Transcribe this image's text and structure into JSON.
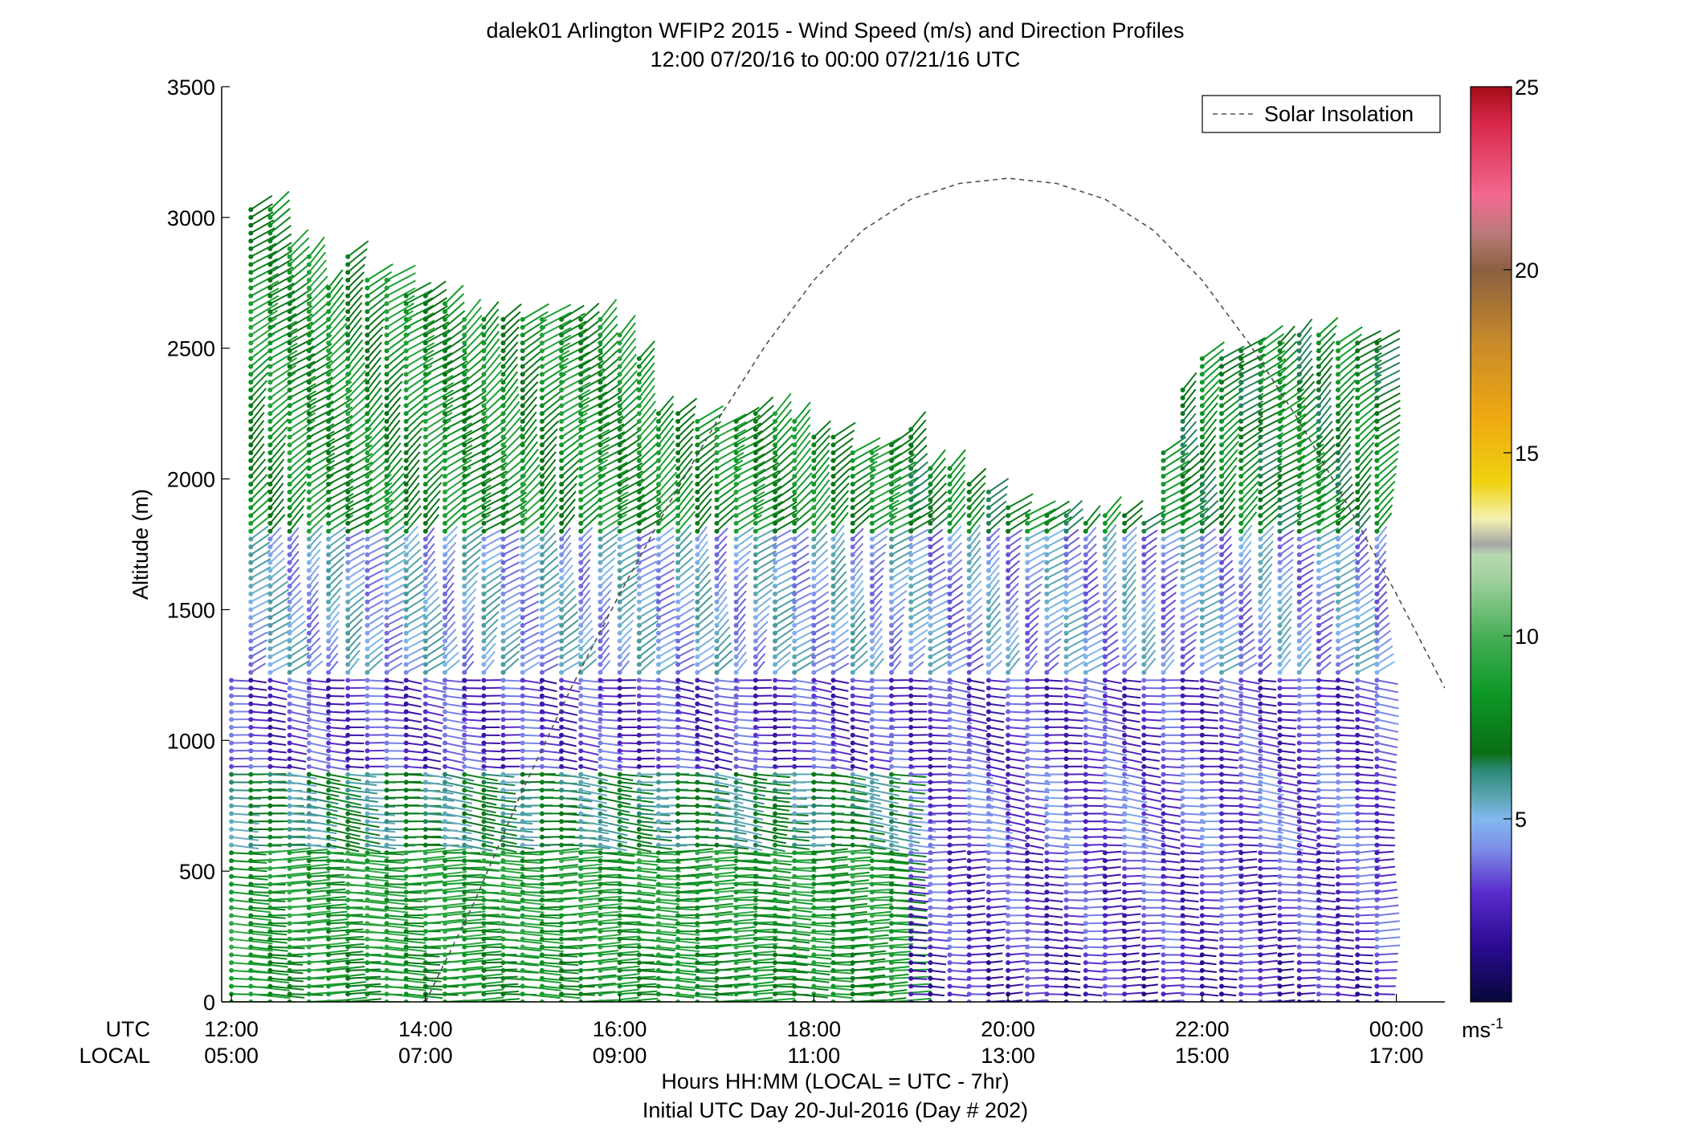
{
  "chart_data": {
    "type": "scatter",
    "subtype": "wind-barb-profile",
    "title": "dalek01 Arlington WFIP2 2015 - Wind Speed (m/s) and Direction Profiles",
    "subtitle": "12:00 07/20/16 to 00:00 07/21/16  UTC",
    "ylabel": "Altitude (m)",
    "xlabel": "Hours HH:MM  (LOCAL = UTC - 7hr)",
    "xlabel2": "Initial UTC Day 20-Jul-2016 (Day # 202)",
    "row_label_utc": "UTC",
    "row_label_local": "LOCAL",
    "x_ticks_utc": [
      "12:00",
      "14:00",
      "16:00",
      "18:00",
      "20:00",
      "22:00",
      "00:00"
    ],
    "x_ticks_local": [
      "05:00",
      "07:00",
      "09:00",
      "11:00",
      "13:00",
      "15:00",
      "17:00"
    ],
    "x_tick_hours": [
      12,
      14,
      16,
      18,
      20,
      22,
      24
    ],
    "xlim_hours": [
      11.9,
      24.5
    ],
    "ylim": [
      0,
      3500
    ],
    "y_ticks": [
      0,
      500,
      1000,
      1500,
      2000,
      2500,
      3000,
      3500
    ],
    "legend": {
      "entries": [
        "Solar Insolation"
      ],
      "placement": "top-right"
    },
    "colorbar": {
      "range": [
        0,
        25
      ],
      "ticks": [
        5,
        10,
        15,
        20,
        25
      ],
      "unit_label": "ms",
      "unit_exponent": "-1",
      "stops": [
        {
          "v": 0,
          "c": "#07083a"
        },
        {
          "v": 1.5,
          "c": "#2a0a90"
        },
        {
          "v": 3,
          "c": "#5a2ccc"
        },
        {
          "v": 4.2,
          "c": "#7d8fe8"
        },
        {
          "v": 5,
          "c": "#82b8ee"
        },
        {
          "v": 5.6,
          "c": "#5aa6b2"
        },
        {
          "v": 6.3,
          "c": "#2e8a7c"
        },
        {
          "v": 6.8,
          "c": "#0a6e14"
        },
        {
          "v": 8.5,
          "c": "#0f9a28"
        },
        {
          "v": 10,
          "c": "#48ae58"
        },
        {
          "v": 11.5,
          "c": "#9ed19c"
        },
        {
          "v": 12.2,
          "c": "#b8d8b0"
        },
        {
          "v": 12.5,
          "c": "#a6a6a6"
        },
        {
          "v": 13.2,
          "c": "#f4f2b0"
        },
        {
          "v": 14.2,
          "c": "#f0d210"
        },
        {
          "v": 16,
          "c": "#eea812"
        },
        {
          "v": 18,
          "c": "#c88a2a"
        },
        {
          "v": 20,
          "c": "#8a6040"
        },
        {
          "v": 21,
          "c": "#bb7a7a"
        },
        {
          "v": 22,
          "c": "#f26a90"
        },
        {
          "v": 24,
          "c": "#d8284a"
        },
        {
          "v": 25,
          "c": "#a20c14"
        }
      ]
    },
    "solar_insolation": {
      "series_name": "Solar Insolation",
      "x_hours": [
        14,
        14.5,
        15,
        15.5,
        16,
        16.5,
        17,
        17.5,
        18,
        18.5,
        19,
        19.5,
        20,
        20.5,
        21,
        21.5,
        22,
        22.5,
        23,
        23.5,
        24,
        24.5
      ],
      "y": [
        0,
        380,
        810,
        1200,
        1560,
        1900,
        2220,
        2510,
        2760,
        2950,
        3070,
        3130,
        3150,
        3130,
        3070,
        2950,
        2760,
        2510,
        2220,
        1900,
        1560,
        1200
      ]
    },
    "wind_profiles": {
      "x_hours": [
        12.0,
        12.2,
        12.4,
        12.6,
        12.8,
        13.0,
        13.2,
        13.4,
        13.6,
        13.8,
        14.0,
        14.2,
        14.4,
        14.6,
        14.8,
        15.0,
        15.2,
        15.4,
        15.6,
        15.8,
        16.0,
        16.2,
        16.4,
        16.6,
        16.8,
        17.0,
        17.2,
        17.4,
        17.6,
        17.8,
        18.0,
        18.2,
        18.4,
        18.6,
        18.8,
        19.0,
        19.2,
        19.4,
        19.6,
        19.8,
        20.0,
        20.2,
        20.4,
        20.6,
        20.8,
        21.0,
        21.2,
        21.4,
        21.6,
        21.8,
        22.0,
        22.2,
        22.4,
        22.6,
        22.8,
        23.0,
        23.2,
        23.4,
        23.6,
        23.8
      ],
      "top_altitude_m": [
        1230,
        3040,
        3050,
        2900,
        2850,
        2750,
        2850,
        2780,
        2760,
        2720,
        2700,
        2690,
        2620,
        2610,
        2610,
        2610,
        2610,
        2610,
        2610,
        2610,
        2560,
        2480,
        2260,
        2260,
        2240,
        2200,
        2240,
        2260,
        2260,
        2240,
        2180,
        2160,
        2100,
        2100,
        2140,
        2200,
        2060,
        2040,
        1980,
        1960,
        1900,
        1880,
        1880,
        1880,
        1840,
        1880,
        1860,
        1840,
        2120,
        2340,
        2480,
        2480,
        2500,
        2520,
        2540,
        2560,
        2550,
        2540,
        2520,
        2540
      ],
      "level_spacing_m": 30,
      "speed_layers": [
        {
          "z_from": 0,
          "z_to": 200,
          "before_19h": 8.0,
          "after_19h": 2.5
        },
        {
          "z_from": 200,
          "z_to": 600,
          "before_19h": 8.5,
          "after_19h": 3.0
        },
        {
          "z_from": 600,
          "z_to": 900,
          "before_19h": 6.5,
          "after_19h": 3.5
        },
        {
          "z_from": 900,
          "z_to": 1250,
          "before_19h": 3.0,
          "after_19h": 3.0
        },
        {
          "z_from": 1250,
          "z_to": 1800,
          "before_19h": 4.8,
          "after_19h": 4.5
        },
        {
          "z_from": 1800,
          "z_to": 3100,
          "before_19h": 8.0,
          "after_19h": 7.5
        }
      ],
      "direction_layers": [
        {
          "z_from": 0,
          "z_to": 600,
          "deg": 270
        },
        {
          "z_from": 600,
          "z_to": 1250,
          "deg": 280
        },
        {
          "z_from": 1250,
          "z_to": 3100,
          "deg": 215
        }
      ]
    }
  }
}
